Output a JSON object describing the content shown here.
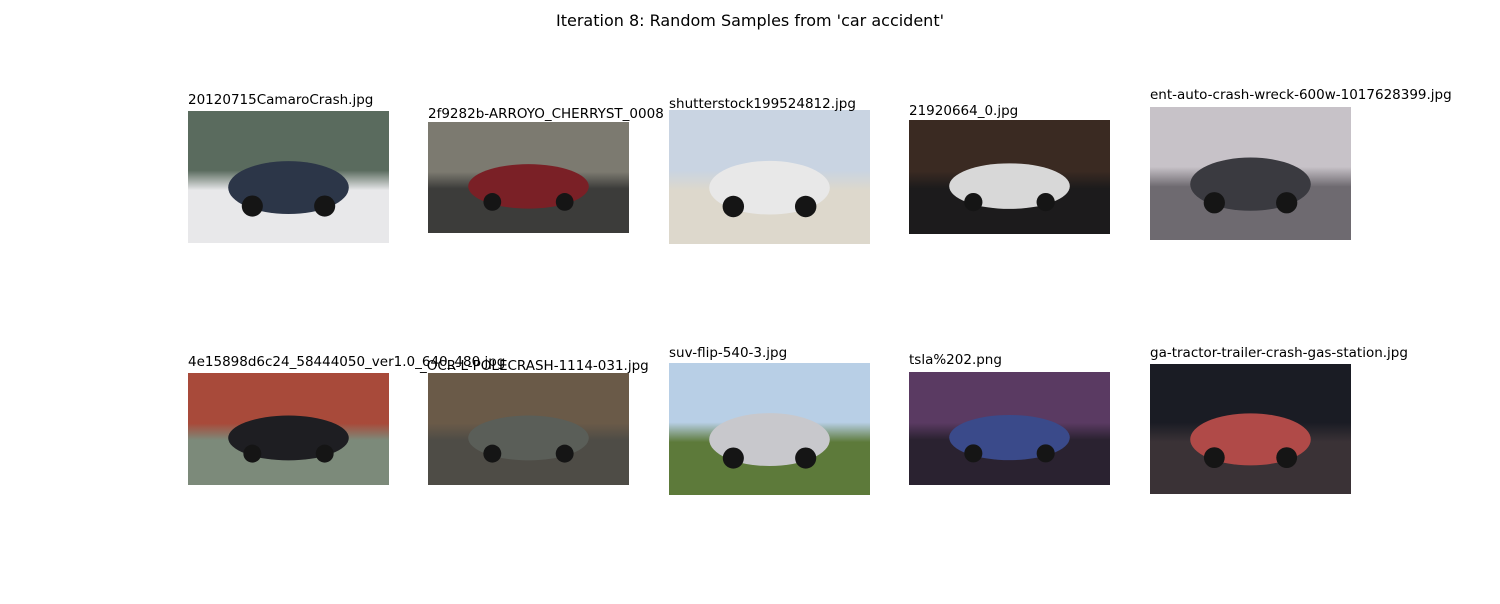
{
  "title": "Iteration 8: Random Samples from 'car accident'",
  "images": [
    {
      "filename": "20120715CamaroCrash.jpg"
    },
    {
      "filename": "2f9282b-ARROYO_CHERRYST_0008"
    },
    {
      "filename": "shutterstock199524812.jpg"
    },
    {
      "filename": "21920664_0.jpg"
    },
    {
      "filename": "ent-auto-crash-wreck-600w-1017628399.jpg"
    },
    {
      "filename": "4e15898d6c24_58444050_ver1.0_640_480.jpg"
    },
    {
      "filename": "_OCR-L-POLECRASH-1114-031.jpg"
    },
    {
      "filename": "suv-flip-540-3.jpg"
    },
    {
      "filename": "tsla%202.png"
    },
    {
      "filename": "ga-tractor-trailer-crash-gas-station.jpg"
    }
  ]
}
